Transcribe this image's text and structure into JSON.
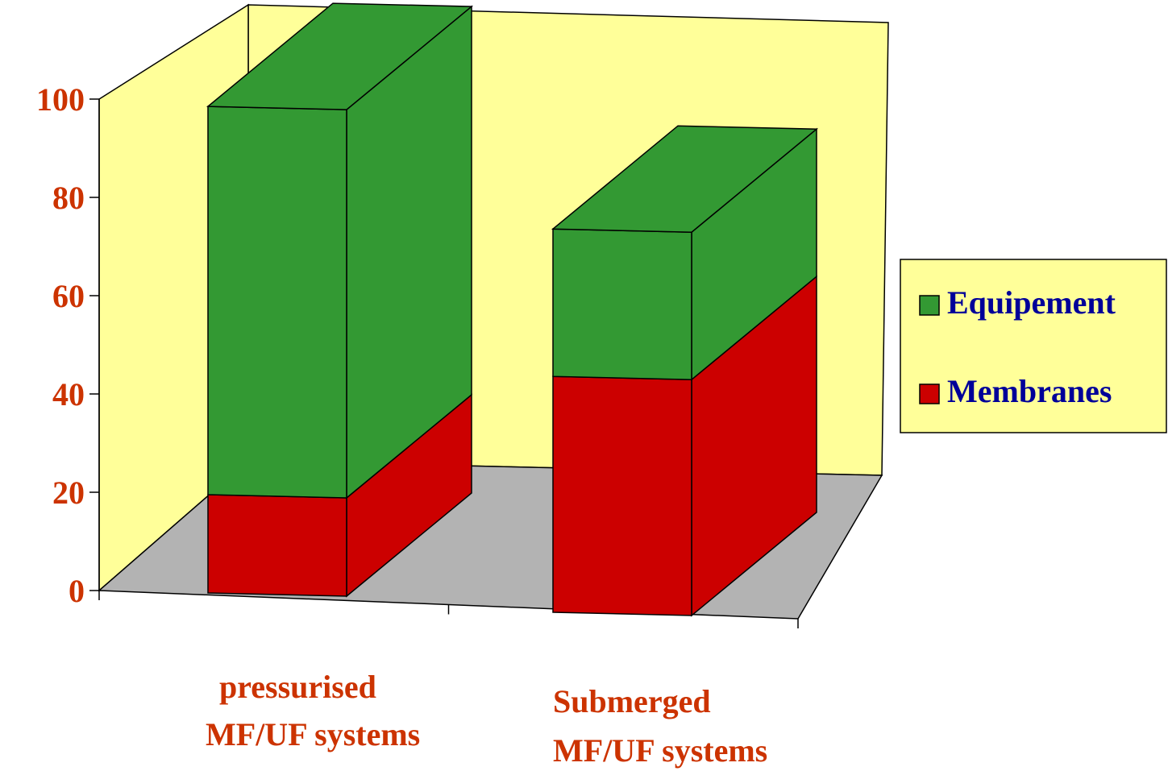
{
  "chart_data": {
    "type": "bar",
    "stacked": true,
    "three_d": true,
    "categories": [
      [
        "pressurised",
        "MF/UF systems"
      ],
      [
        "Submerged",
        "MF/UF systems"
      ]
    ],
    "series": [
      {
        "name": "Membranes",
        "values": [
          20,
          48
        ],
        "color": "#cc0000"
      },
      {
        "name": "Equipement",
        "values": [
          79,
          30
        ],
        "color": "#339933"
      }
    ],
    "ylim": [
      0,
      100
    ],
    "yticks": [
      "0",
      "20",
      "40",
      "60",
      "80",
      "100"
    ],
    "title": "",
    "xlabel": "",
    "ylabel": "",
    "legend_position": "right",
    "wall_color": "#ffff99",
    "floor_color": "#b3b3b3"
  }
}
